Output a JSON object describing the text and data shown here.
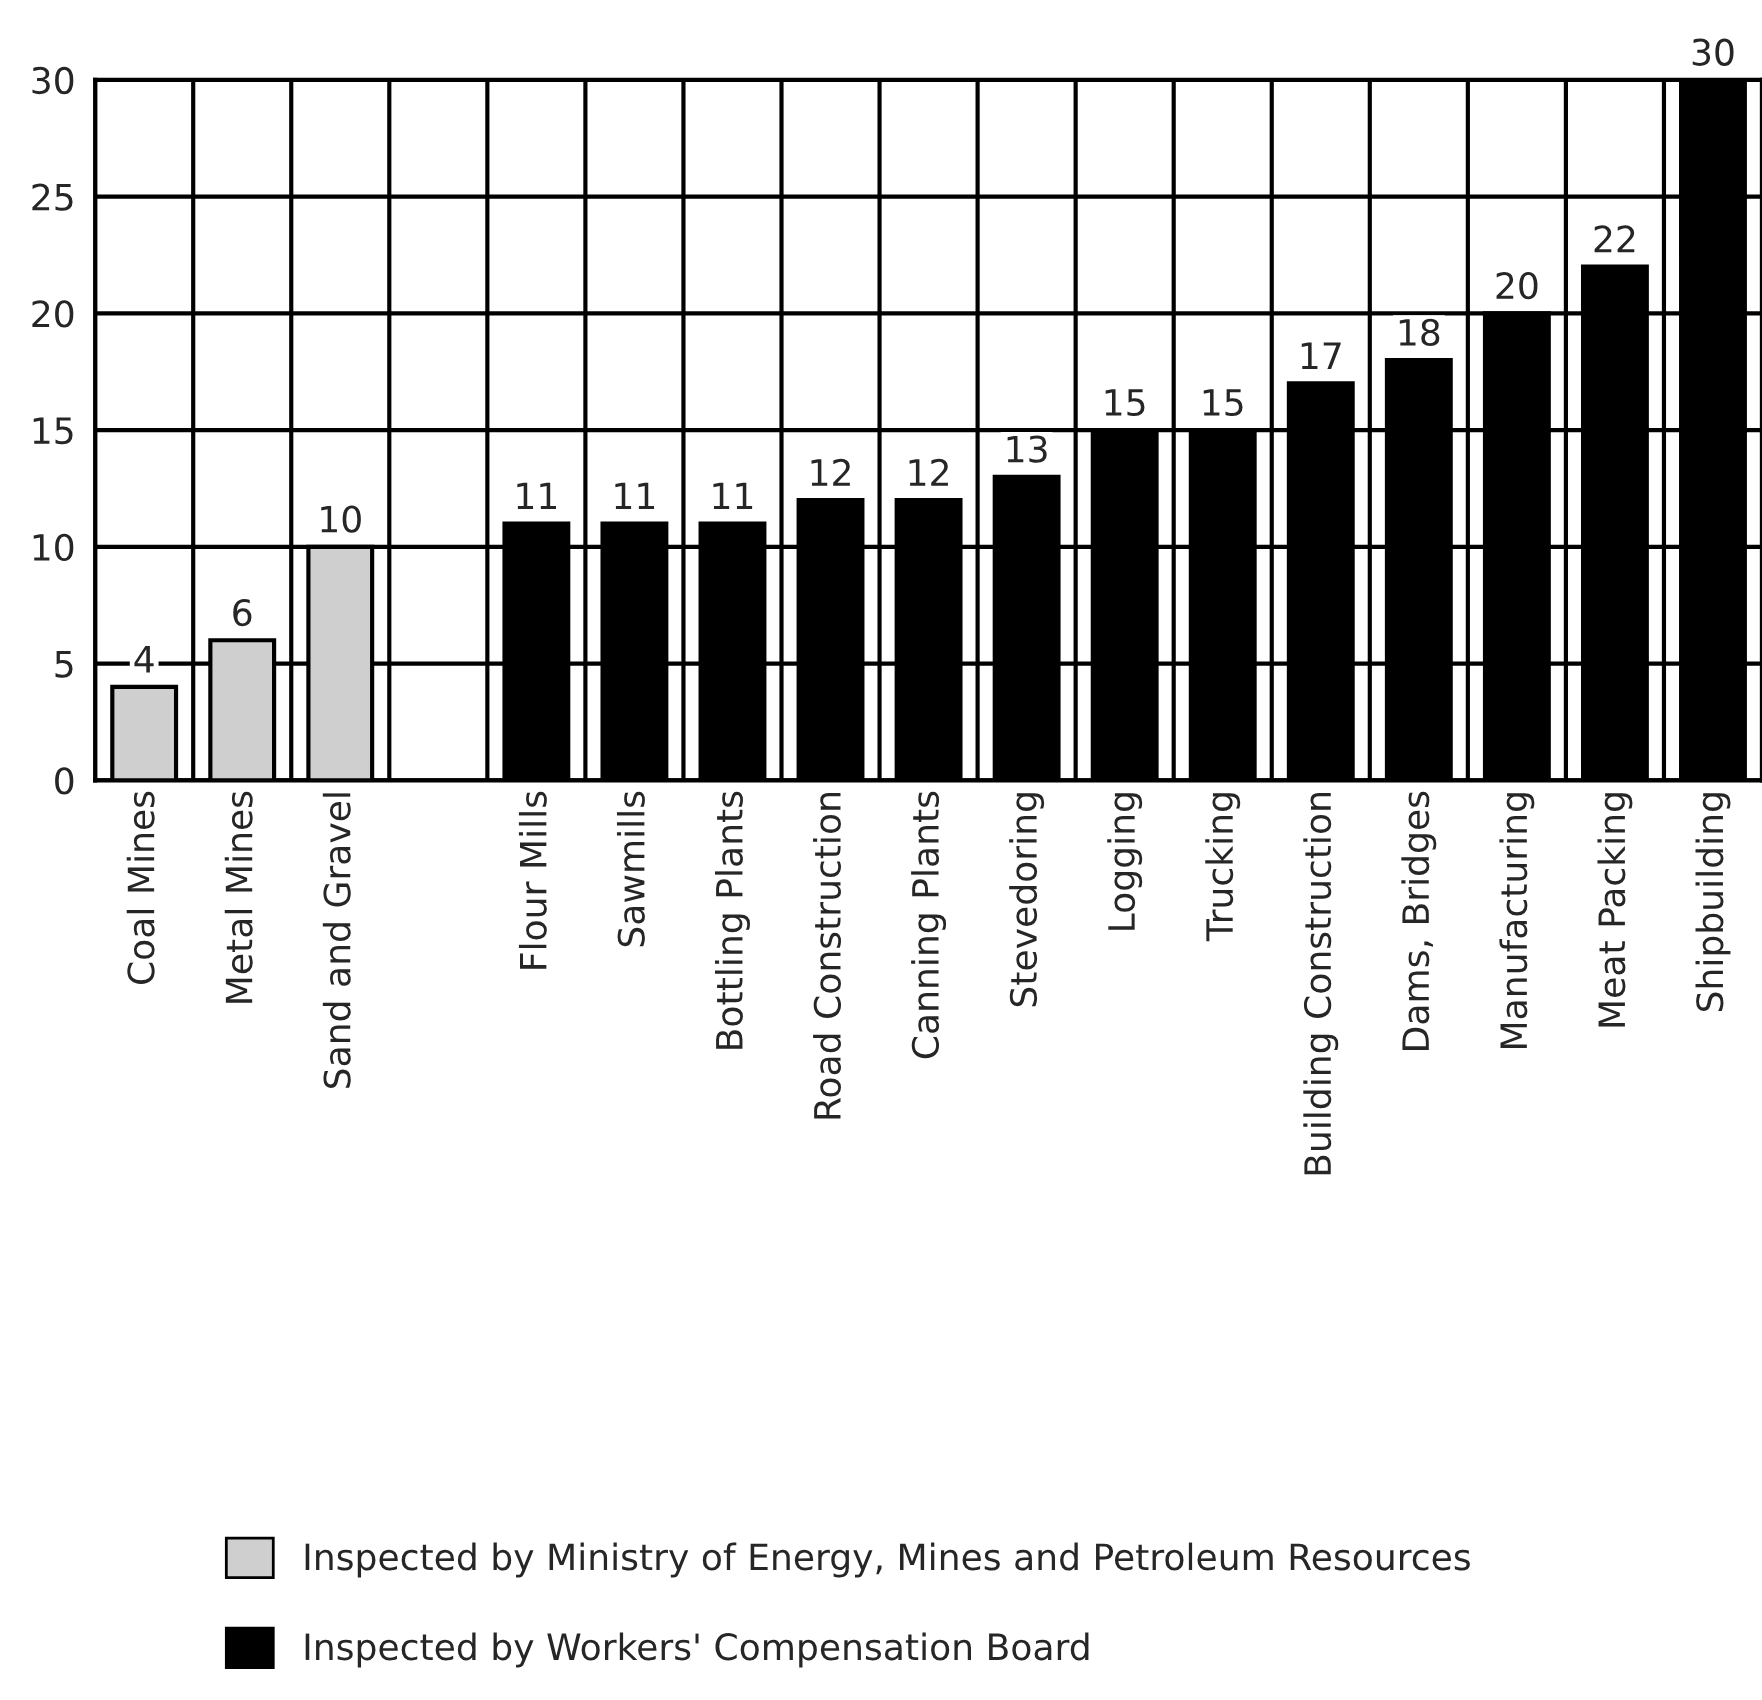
{
  "chart_data": {
    "type": "bar",
    "categories": [
      "Coal Mines",
      "Metal Mines",
      "Sand and Gravel",
      null,
      "Flour Mills",
      "Sawmills",
      "Bottling Plants",
      "Road Construction",
      "Canning Plants",
      "Stevedoring",
      "Logging",
      "Trucking",
      "Building Construction",
      "Dams, Bridges",
      "Manufacturing",
      "Meat Packing",
      "Shipbuilding"
    ],
    "series": [
      {
        "name": "Inspected by Ministry of Energy, Mines and Petroleum Resources",
        "color": "#cfcfcf",
        "values": [
          4,
          6,
          10,
          null,
          null,
          null,
          null,
          null,
          null,
          null,
          null,
          null,
          null,
          null,
          null,
          null,
          null
        ]
      },
      {
        "name": "Inspected by Workers' Compensation Board",
        "color": "#000000",
        "values": [
          null,
          null,
          null,
          null,
          11,
          11,
          11,
          12,
          12,
          13,
          15,
          15,
          17,
          18,
          20,
          22,
          30
        ]
      }
    ],
    "ylim": [
      0,
      30
    ],
    "yticks": [
      0,
      5,
      10,
      15,
      20,
      25,
      30
    ],
    "grid": true,
    "data_labels": true,
    "legend": "bottom left"
  }
}
